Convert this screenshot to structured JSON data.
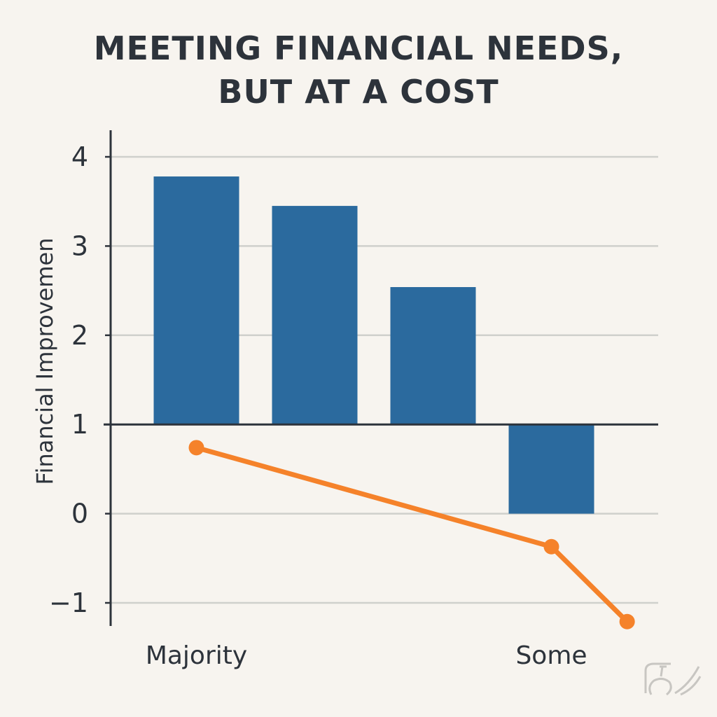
{
  "chart_data": {
    "type": "bar",
    "title_lines": [
      "MEETING FINANCIAL NEEDS,",
      "BUT AT A COST"
    ],
    "xlabel": "",
    "ylabel": "Financial Improvemen",
    "ylim": [
      -1.25,
      4.3
    ],
    "yticks": [
      4,
      3,
      2,
      1,
      0,
      -1
    ],
    "ytick_labels": [
      "4",
      "3",
      "2",
      "1",
      "0",
      "−1"
    ],
    "baseline": 1,
    "categories": [
      "Majority",
      "",
      "",
      "Some"
    ],
    "series": [
      {
        "kind": "bar",
        "values": [
          3.78,
          3.45,
          2.54,
          0
        ],
        "color": "#2b6a9e"
      },
      {
        "kind": "line",
        "points": [
          {
            "x": 0,
            "y": 0.74
          },
          {
            "x": 3,
            "y": -0.37
          },
          {
            "x": 3.64,
            "y": -1.21
          }
        ],
        "color": "#f5822a"
      }
    ],
    "grid": true,
    "legend": "none"
  },
  "colors": {
    "background": "#f7f4ef",
    "text": "#2d333b",
    "grid": "#cfd0cc",
    "bar": "#2b6a9e",
    "line": "#f5822a"
  }
}
